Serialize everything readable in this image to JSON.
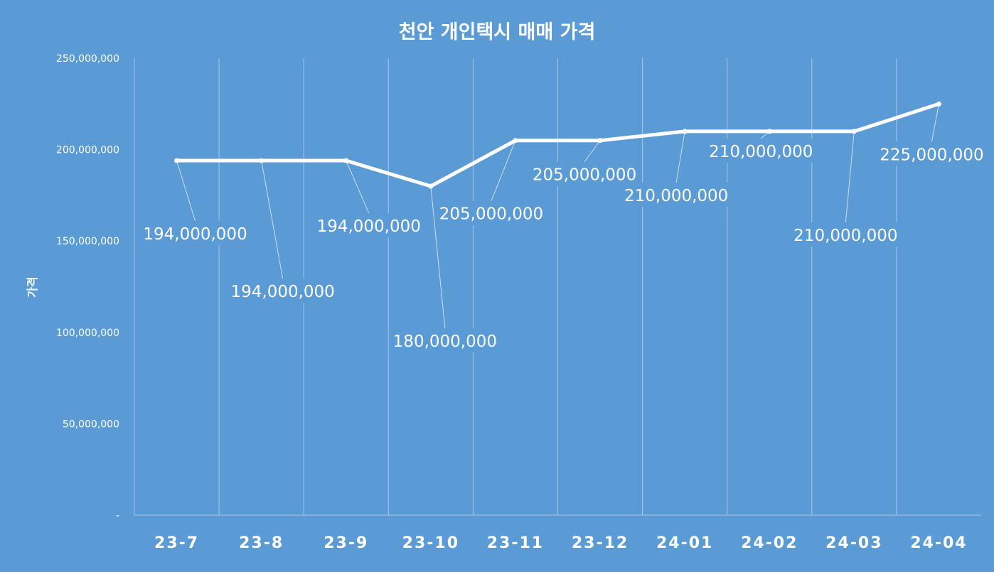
{
  "chart_data": {
    "type": "line",
    "title": "천안 개인택시 매매 가격",
    "ylabel": "가격",
    "xlabel": "",
    "categories": [
      "23-7",
      "23-8",
      "23-9",
      "23-10",
      "23-11",
      "23-12",
      "24-01",
      "24-02",
      "24-03",
      "24-04"
    ],
    "series": [
      {
        "values": [
          194000000,
          194000000,
          194000000,
          180000000,
          205000000,
          205000000,
          210000000,
          210000000,
          210000000,
          225000000
        ],
        "color": "#ffffff"
      }
    ],
    "data_labels": [
      "194,000,000",
      "194,000,000",
      "194,000,000",
      "180,000,000",
      "205,000,000",
      "205,000,000",
      "210,000,000",
      "210,000,000",
      "210,000,000",
      "225,000,000"
    ],
    "ylim": [
      0,
      250000000
    ],
    "yticks": [
      {
        "value": 0,
        "label": "-"
      },
      {
        "value": 50000000,
        "label": "50,000,000"
      },
      {
        "value": 100000000,
        "label": "100,000,000"
      },
      {
        "value": 150000000,
        "label": "150,000,000"
      },
      {
        "value": 200000000,
        "label": "200,000,000"
      },
      {
        "value": 250000000,
        "label": "250,000,000"
      }
    ],
    "grid": "vertical",
    "legend": "none",
    "background": "#5b9bd5"
  }
}
